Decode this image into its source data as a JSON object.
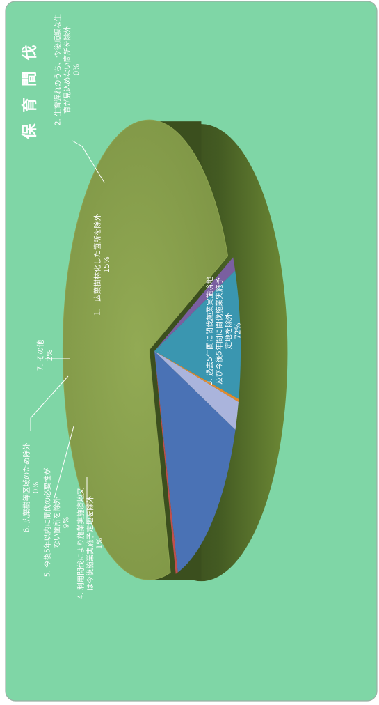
{
  "chart_data": {
    "type": "pie",
    "title": "保 育 間 伐",
    "series": [
      {
        "name": "1. 広葉樹林化した箇所を除外",
        "label_lines": [
          "1.　広葉樹林化した箇所を除外"
        ],
        "pct_label": "15%",
        "value": 15,
        "color": "#4a72b5"
      },
      {
        "name": "2. 生育遅れのうち、今後順調な生育が見込めない箇所を除外",
        "label_lines": [
          "2. 生育遅れのうち、今後順調な生",
          "育が見込めない箇所を除外"
        ],
        "pct_label": "0%",
        "value": 0.4,
        "color": "#c0504d"
      },
      {
        "name": "3. 過去5年間に間伐施業実施済地及び今後5年間に間伐施業実施予定地を除外",
        "label_lines": [
          "3. 過去5年間に間伐施業実施済地",
          "及び今後5年間に間伐施業実施予",
          "定地を除外"
        ],
        "pct_label": "72%",
        "value": 72,
        "color": "#8ca24f"
      },
      {
        "name": "4. 利用間伐により施業実施済地又は今後施業実施予定地を除外",
        "label_lines": [
          "4. 利用間伐により施業実施済地又",
          "は今後施業実施予定地を除外"
        ],
        "pct_label": "1%",
        "value": 1,
        "color": "#7a5fa0"
      },
      {
        "name": "5. 今後5年以内に間伐の必要性がない箇所を除外",
        "label_lines": [
          "5. 今後5年以内に間伐の必要性が",
          "ない箇所を除外"
        ],
        "pct_label": "9%",
        "value": 9,
        "color": "#3a96b0"
      },
      {
        "name": "6. 広葉樹等区域のため除外",
        "label_lines": [
          "6. 広葉樹等区域のため除外"
        ],
        "pct_label": "0%",
        "value": 0.2,
        "color": "#e08a2e"
      },
      {
        "name": "7. その他",
        "label_lines": [
          "7. その他"
        ],
        "pct_label": "2%",
        "value": 2,
        "color": "#aab4dc"
      }
    ],
    "background": "#7fd6a6",
    "text_color": "#ffffff",
    "style": "3d-exploded-pie, rotated 90°"
  }
}
